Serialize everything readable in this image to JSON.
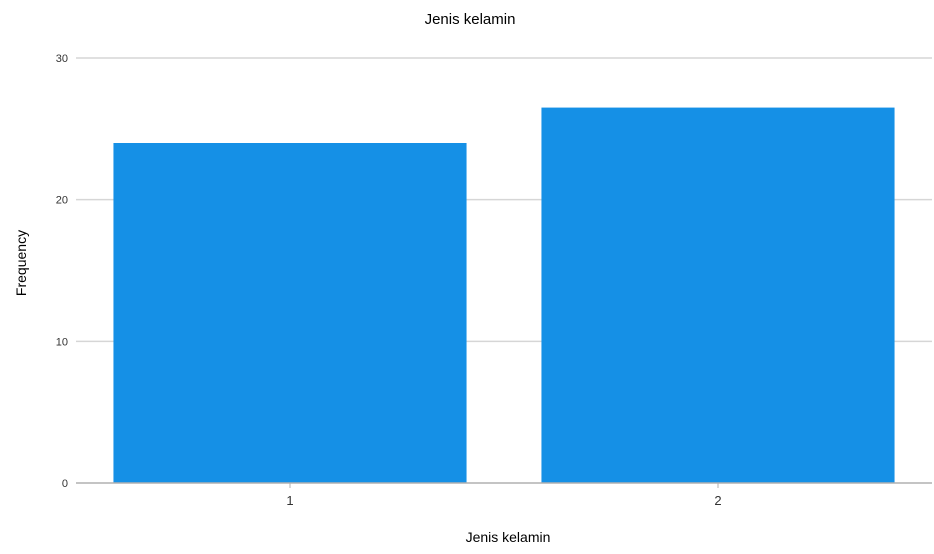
{
  "chart_data": {
    "type": "bar",
    "title": "Jenis kelamin",
    "xlabel": "Jenis kelamin",
    "ylabel": "Frequency",
    "categories": [
      "1",
      "2"
    ],
    "values": [
      24,
      26.5
    ],
    "ylim": [
      0,
      30
    ],
    "yticks": [
      0,
      10,
      20,
      30
    ],
    "grid": true,
    "colors": {
      "bar": "#1590e6",
      "grid": "#d6d6d6",
      "axis": "#b0b0b0"
    }
  }
}
